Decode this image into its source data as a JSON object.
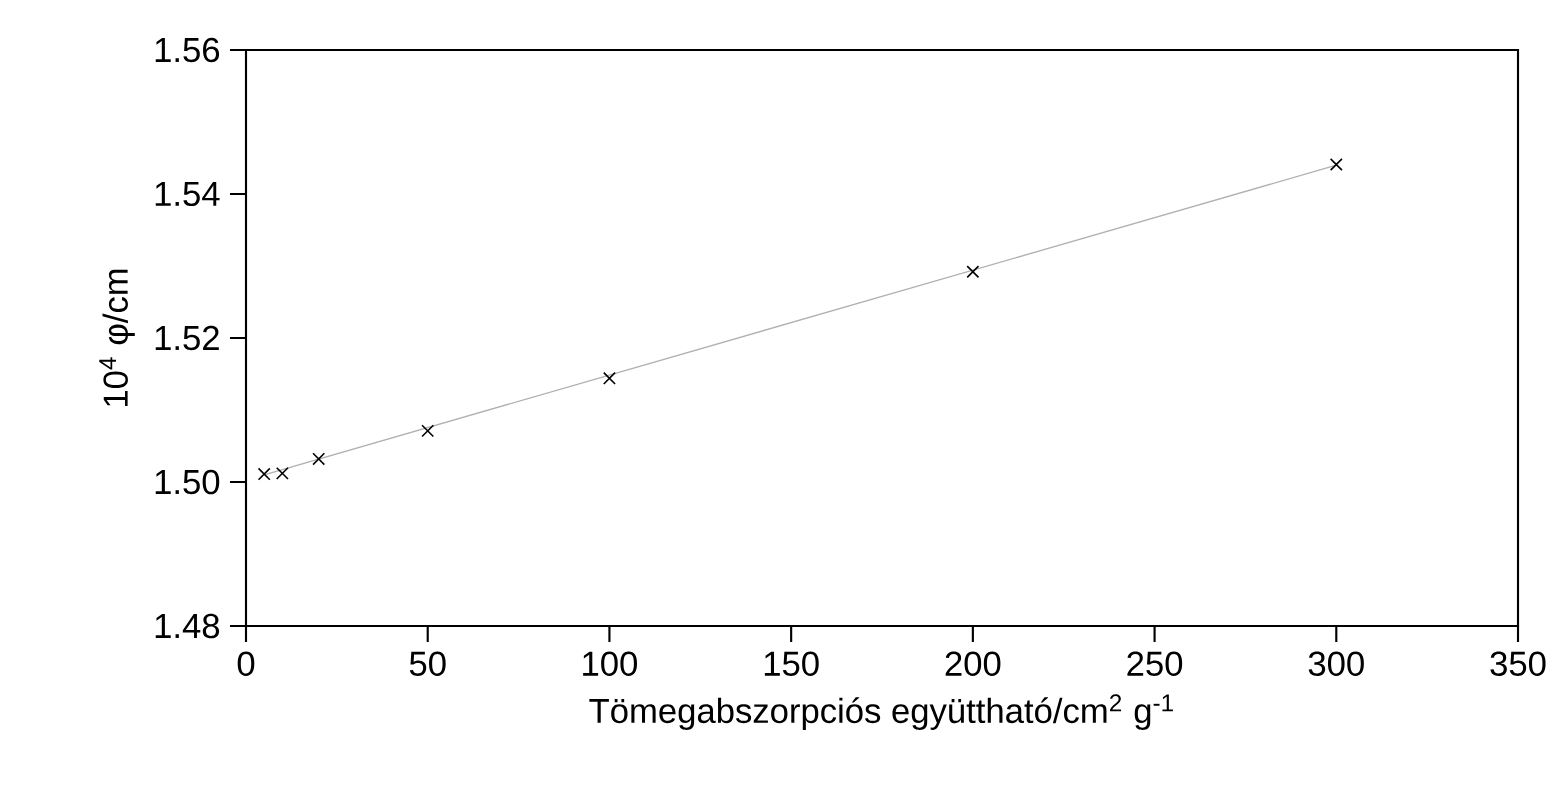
{
  "chart_data": {
    "type": "scatter",
    "xlabel": "Tömegabszorpciós együttható/cm$^{2}$ g$^{-1}$",
    "ylabel": "10$^{4}$ φ/cm",
    "xlim": [
      0,
      350
    ],
    "xticks": [
      0,
      50,
      100,
      150,
      200,
      250,
      300,
      350
    ],
    "ylim": [
      1.48,
      1.56
    ],
    "yticks": [
      {
        "value": 1.48,
        "label": "1.48"
      },
      {
        "value": 1.5,
        "label": "1.50"
      },
      {
        "value": 1.52,
        "label": "1.52"
      },
      {
        "value": 1.54,
        "label": "1.54"
      },
      {
        "value": 1.56,
        "label": "1.56"
      }
    ],
    "grid": false,
    "series": [
      {
        "type": "line",
        "color": "#b0b0b0",
        "marker": "none",
        "x": [
          5,
          300
        ],
        "values": [
          1.501,
          1.544
        ]
      },
      {
        "color": "#000000",
        "marker": "cross",
        "x": [
          5,
          10,
          20,
          50,
          100,
          200,
          300
        ],
        "values": [
          1.5011,
          1.5012,
          1.5032,
          1.5071,
          1.5144,
          1.5292,
          1.5441
        ]
      }
    ]
  }
}
